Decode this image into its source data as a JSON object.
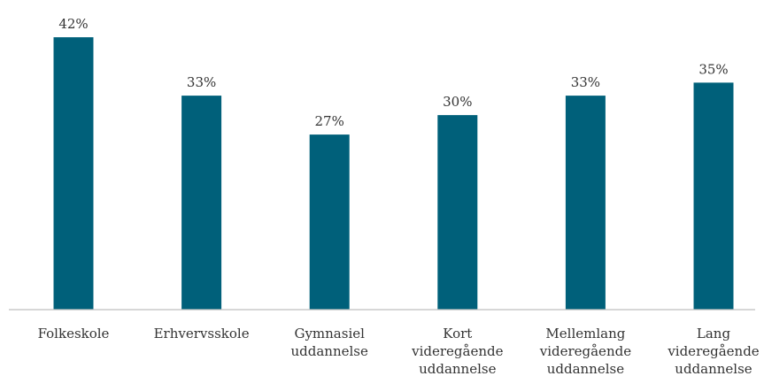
{
  "chart_data": {
    "type": "bar",
    "categories": [
      [
        "Folkeskole"
      ],
      [
        "Erhvervsskole"
      ],
      [
        "Gymnasiel",
        "uddannelse"
      ],
      [
        "Kort",
        "videregående",
        "uddannelse"
      ],
      [
        "Mellemlang",
        "videregående",
        "uddannelse"
      ],
      [
        "Lang",
        "videregående",
        "uddannelse"
      ]
    ],
    "values": [
      42,
      33,
      27,
      30,
      33,
      35
    ],
    "value_labels": [
      "42%",
      "33%",
      "27%",
      "30%",
      "33%",
      "35%"
    ],
    "unit": "%",
    "ylim": [
      0,
      45
    ],
    "grid": false,
    "legend": "none",
    "title": "",
    "xlabel": "",
    "ylabel": "",
    "colors": {
      "bar": "#00607A",
      "axis": "#BFBFBF",
      "text": "#333333"
    }
  }
}
